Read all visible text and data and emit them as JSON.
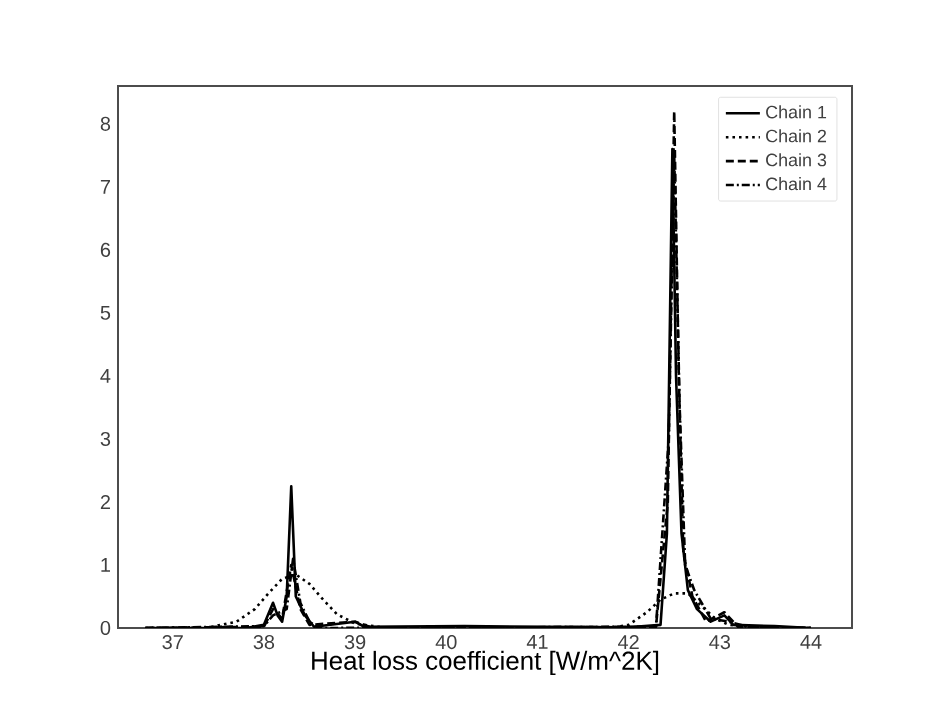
{
  "chart_data": {
    "type": "line",
    "xlabel": "Heat loss coefficient [W/m^2K]",
    "xlim": [
      36.4,
      44.45
    ],
    "xticks": [
      37,
      38,
      39,
      40,
      41,
      42,
      43,
      44
    ],
    "ylim": [
      0,
      8.6
    ],
    "yticks": [
      0,
      1,
      2,
      3,
      4,
      5,
      6,
      7,
      8
    ],
    "grid": false,
    "legend": "top right",
    "marker": "none",
    "series": [
      {
        "name": "Chain 1",
        "color": "#000000",
        "line_style": "solid",
        "x": [
          36.7,
          37.8,
          38.0,
          38.1,
          38.15,
          38.2,
          38.25,
          38.3,
          38.35,
          38.4,
          38.45,
          38.55,
          39.0,
          39.1,
          40.2,
          42.0,
          42.35,
          42.42,
          42.48,
          42.52,
          42.58,
          42.65,
          42.75,
          42.9,
          43.05,
          43.15,
          43.6,
          44.0
        ],
        "values": [
          0,
          0,
          0.05,
          0.4,
          0.2,
          0.1,
          0.5,
          2.25,
          0.5,
          0.35,
          0.2,
          0.02,
          0.1,
          0.02,
          0.03,
          0.01,
          0.05,
          1.5,
          7.6,
          4.0,
          1.5,
          0.6,
          0.3,
          0.1,
          0.2,
          0.05,
          0.03,
          0
        ]
      },
      {
        "name": "Chain 2",
        "color": "#000000",
        "line_style": "dotted",
        "x": [
          36.7,
          37.4,
          37.7,
          37.9,
          38.05,
          38.2,
          38.35,
          38.5,
          38.65,
          38.8,
          39.0,
          39.3,
          40.0,
          41.8,
          42.0,
          42.2,
          42.35,
          42.5,
          42.65,
          42.8,
          42.95,
          43.1,
          43.4,
          44.0
        ],
        "values": [
          0,
          0.01,
          0.1,
          0.3,
          0.55,
          0.78,
          0.85,
          0.7,
          0.45,
          0.22,
          0.07,
          0.01,
          0,
          0,
          0.05,
          0.25,
          0.45,
          0.55,
          0.55,
          0.35,
          0.15,
          0.05,
          0.01,
          0
        ]
      },
      {
        "name": "Chain 3",
        "color": "#000000",
        "line_style": "dashed",
        "x": [
          36.7,
          38.0,
          38.1,
          38.2,
          38.3,
          38.4,
          38.5,
          39.0,
          39.2,
          42.3,
          42.43,
          42.5,
          42.55,
          42.6,
          42.7,
          42.85,
          43.05,
          43.2,
          44.0
        ],
        "values": [
          0,
          0.02,
          0.3,
          0.15,
          1.0,
          0.3,
          0.05,
          0.1,
          0,
          0.02,
          2.0,
          8.2,
          4.0,
          1.2,
          0.5,
          0.1,
          0.25,
          0.02,
          0
        ]
      },
      {
        "name": "Chain 4",
        "color": "#000000",
        "line_style": "dashdot",
        "x": [
          36.7,
          38.0,
          38.1,
          38.25,
          38.32,
          38.4,
          38.5,
          38.6,
          42.3,
          42.44,
          42.5,
          42.56,
          42.62,
          42.72,
          42.9,
          43.1,
          43.3,
          44.0
        ],
        "values": [
          0,
          0.03,
          0.2,
          0.3,
          1.1,
          0.4,
          0.1,
          0,
          0.02,
          3.0,
          7.5,
          3.5,
          1.0,
          0.6,
          0.15,
          0.1,
          0.02,
          0
        ]
      }
    ]
  }
}
